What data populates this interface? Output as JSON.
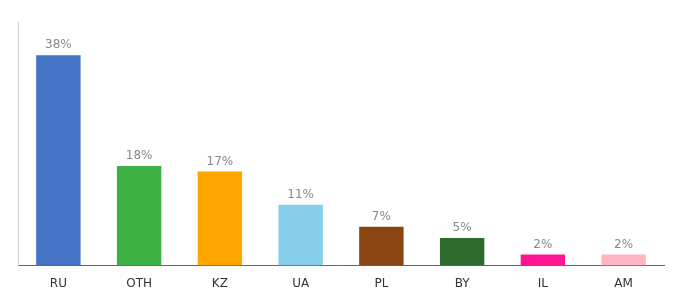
{
  "chart_data": {
    "type": "bar",
    "categories": [
      "RU",
      "OTH",
      "KZ",
      "UA",
      "PL",
      "BY",
      "IL",
      "AM"
    ],
    "values": [
      38,
      18,
      17,
      11,
      7,
      5,
      2,
      2
    ],
    "value_labels": [
      "38%",
      "18%",
      "17%",
      "11%",
      "7%",
      "5%",
      "2%",
      "2%"
    ],
    "colors": [
      "#4472C4",
      "#3CB043",
      "#FFA500",
      "#87CEEB",
      "#8B4513",
      "#2D6A2D",
      "#FF1493",
      "#FFB6C1"
    ],
    "ylim": [
      0,
      44
    ],
    "data_labels": true,
    "tick_labels": "x",
    "grid": false
  }
}
